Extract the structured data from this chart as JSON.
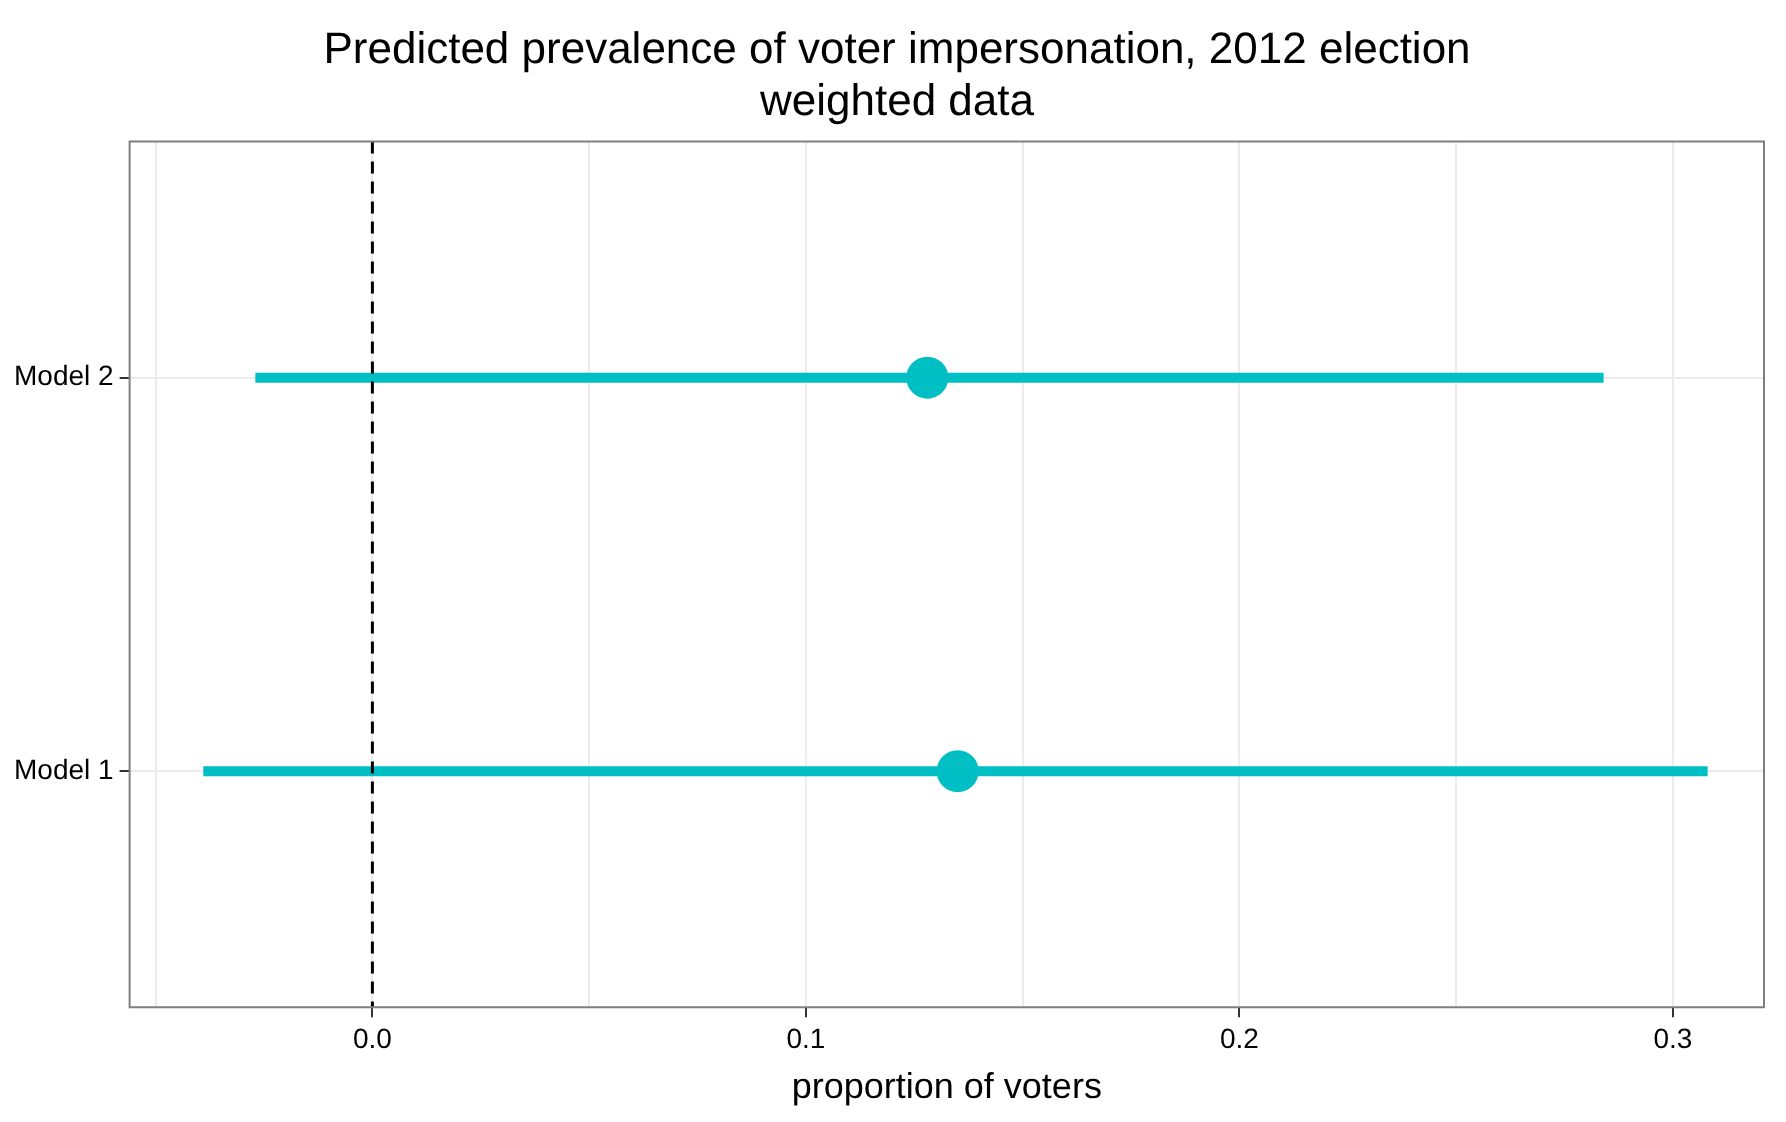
{
  "chart_data": {
    "type": "scatter",
    "orientation": "horizontal",
    "title": "Predicted prevalence of voter impersonation, 2012 election",
    "subtitle": "weighted data",
    "xlabel": "proportion of voters",
    "categories": [
      "Model 2",
      "Model 1"
    ],
    "values": [
      0.128,
      0.135
    ],
    "errors": [
      [
        -0.027,
        0.284
      ],
      [
        -0.039,
        0.308
      ]
    ],
    "color": "#00bfc4",
    "marker": "circle",
    "xlim": [
      -0.056,
      0.321
    ],
    "xticks": [
      {
        "value": -0.05,
        "label": null
      },
      {
        "value": 0,
        "label": "0.0"
      },
      {
        "value": 0.05,
        "label": null
      },
      0.1,
      {
        "value": 0.15,
        "label": null
      },
      0.2,
      {
        "value": 0.25,
        "label": null
      },
      0.3
    ],
    "ref_lines": [
      {
        "axis": "x",
        "value": 0,
        "label": null,
        "color": "#000000",
        "line_style": "dashed"
      }
    ],
    "grid": true,
    "legend": false
  }
}
